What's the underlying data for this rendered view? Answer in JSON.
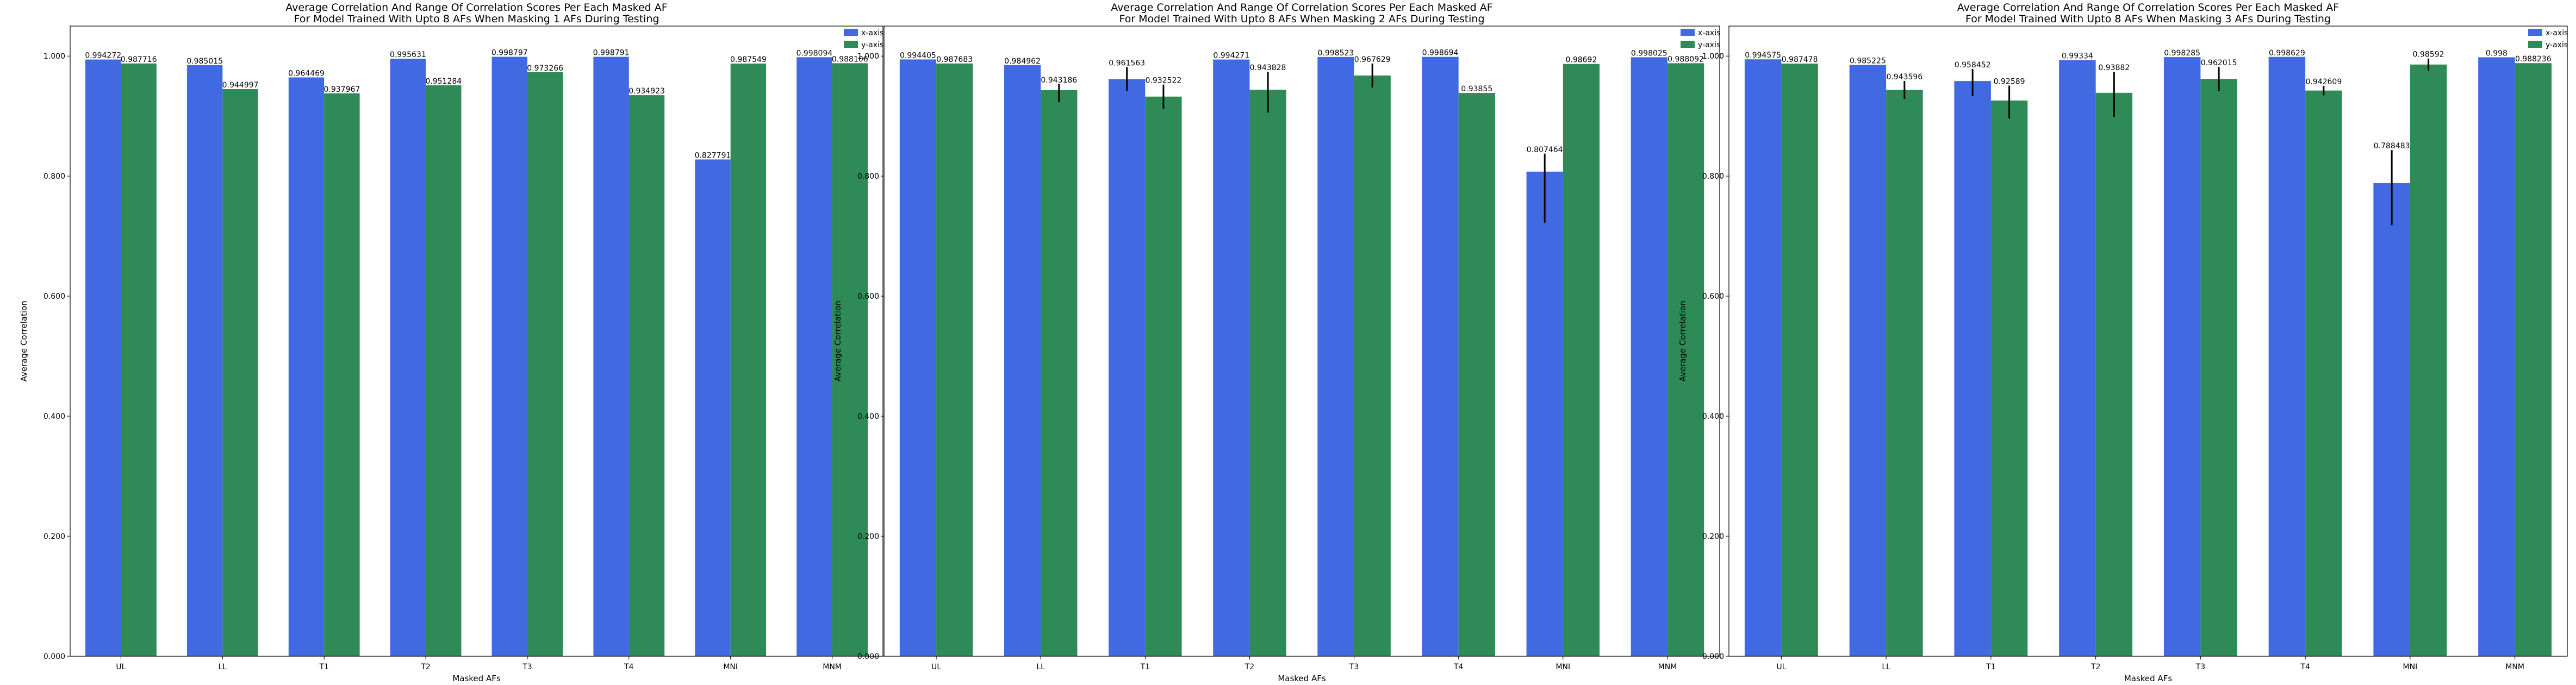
{
  "chart_data": [
    {
      "type": "bar",
      "title": [
        "Average Correlation And Range Of Correlation Scores Per Each Masked AF",
        "For Model Trained With Upto 8 AFs When Masking 1 AFs During Testing"
      ],
      "xlabel": "Masked AFs",
      "ylabel": "Average Correlation",
      "categories": [
        "UL",
        "LL",
        "T1",
        "T2",
        "T3",
        "T4",
        "MNI",
        "MNM"
      ],
      "ylim": [
        0,
        1.05
      ],
      "yticks": [
        "0.000",
        "0.200",
        "0.400",
        "0.600",
        "0.800",
        "1.000"
      ],
      "legend_position": "top-right",
      "series": [
        {
          "name": "x-axis",
          "color": "#4169e1",
          "values": [
            0.994272,
            0.985015,
            0.964469,
            0.995631,
            0.998797,
            0.998791,
            0.827791,
            0.998094
          ],
          "labels": [
            "0.994272",
            "0.985015",
            "0.964469",
            "0.995631",
            "0.998797",
            "0.998791",
            "0.827791",
            "0.998094"
          ],
          "err_lo": [
            0,
            0,
            0,
            0,
            0,
            0,
            0,
            0
          ],
          "err_hi": [
            0,
            0,
            0,
            0,
            0,
            0,
            0,
            0
          ]
        },
        {
          "name": "y-axis",
          "color": "#2e8b57",
          "values": [
            0.987716,
            0.944997,
            0.937967,
            0.951284,
            0.973266,
            0.934923,
            0.987549,
            0.988106
          ],
          "labels": [
            "0.987716",
            "0.944997",
            "0.937967",
            "0.951284",
            "0.973266",
            "0.934923",
            "0.987549",
            "0.988106"
          ],
          "err_lo": [
            0,
            0,
            0,
            0,
            0,
            0,
            0,
            0
          ],
          "err_hi": [
            0,
            0,
            0,
            0,
            0,
            0,
            0,
            0
          ]
        }
      ]
    },
    {
      "type": "bar",
      "title": [
        "Average Correlation And Range Of Correlation Scores Per Each Masked AF",
        "For Model Trained With Upto 8 AFs When Masking 2 AFs During Testing"
      ],
      "xlabel": "Masked AFs",
      "ylabel": "Average Correlation",
      "categories": [
        "UL",
        "LL",
        "T1",
        "T2",
        "T3",
        "T4",
        "MNI",
        "MNM"
      ],
      "ylim": [
        0,
        1.05
      ],
      "yticks": [
        "0.000",
        "0.200",
        "0.400",
        "0.600",
        "0.800",
        "1.000"
      ],
      "legend_position": "top-right",
      "series": [
        {
          "name": "x-axis",
          "color": "#4169e1",
          "values": [
            0.994405,
            0.984962,
            0.961563,
            0.994271,
            0.998523,
            0.998694,
            0.807464,
            0.998025
          ],
          "labels": [
            "0.994405",
            "0.984962",
            "0.961563",
            "0.994271",
            "0.998523",
            "0.998694",
            "0.807464",
            "0.998025"
          ],
          "err_lo": [
            0,
            0,
            0.02,
            0,
            0,
            0,
            0.085,
            0
          ],
          "err_hi": [
            0,
            0,
            0.02,
            0,
            0,
            0,
            0.03,
            0
          ]
        },
        {
          "name": "y-axis",
          "color": "#2e8b57",
          "values": [
            0.987683,
            0.943186,
            0.932522,
            0.943828,
            0.967629,
            0.93855,
            0.98692,
            0.988092
          ],
          "labels": [
            "0.987683",
            "0.943186",
            "0.932522",
            "0.943828",
            "0.967629",
            "0.93855",
            "0.98692",
            "0.988092"
          ],
          "err_lo": [
            0,
            0.02,
            0.02,
            0.038,
            0.02,
            0,
            0,
            0
          ],
          "err_hi": [
            0,
            0.01,
            0.02,
            0.03,
            0.02,
            0,
            0,
            0
          ]
        }
      ]
    },
    {
      "type": "bar",
      "title": [
        "Average Correlation And Range Of Correlation Scores Per Each Masked AF",
        "For Model Trained With Upto 8 AFs When Masking 3 AFs During Testing"
      ],
      "xlabel": "Masked AFs",
      "ylabel": "Average Correlation",
      "categories": [
        "UL",
        "LL",
        "T1",
        "T2",
        "T3",
        "T4",
        "MNI",
        "MNM"
      ],
      "ylim": [
        0,
        1.05
      ],
      "yticks": [
        "0.000",
        "0.200",
        "0.400",
        "0.600",
        "0.800",
        "1.000"
      ],
      "legend_position": "top-right",
      "series": [
        {
          "name": "x-axis",
          "color": "#4169e1",
          "values": [
            0.994575,
            0.985225,
            0.958452,
            0.99334,
            0.998285,
            0.998629,
            0.788483,
            0.998
          ],
          "labels": [
            "0.994575",
            "0.985225",
            "0.958452",
            "0.99334",
            "0.998285",
            "0.998629",
            "0.788483",
            "0.998"
          ],
          "err_lo": [
            0,
            0,
            0.025,
            0,
            0,
            0,
            0.07,
            0
          ],
          "err_hi": [
            0,
            0,
            0.02,
            0,
            0,
            0,
            0.055,
            0
          ]
        },
        {
          "name": "y-axis",
          "color": "#2e8b57",
          "values": [
            0.987478,
            0.943596,
            0.92589,
            0.93882,
            0.962015,
            0.942609,
            0.98592,
            0.988236
          ],
          "labels": [
            "0.987478",
            "0.943596",
            "0.92589",
            "0.93882",
            "0.962015",
            "0.942609",
            "0.98592",
            "0.988236"
          ],
          "err_lo": [
            0,
            0.015,
            0.03,
            0.04,
            0.02,
            0.008,
            0.01,
            0
          ],
          "err_hi": [
            0,
            0.015,
            0.025,
            0.035,
            0.02,
            0.008,
            0.01,
            0
          ]
        }
      ]
    }
  ]
}
